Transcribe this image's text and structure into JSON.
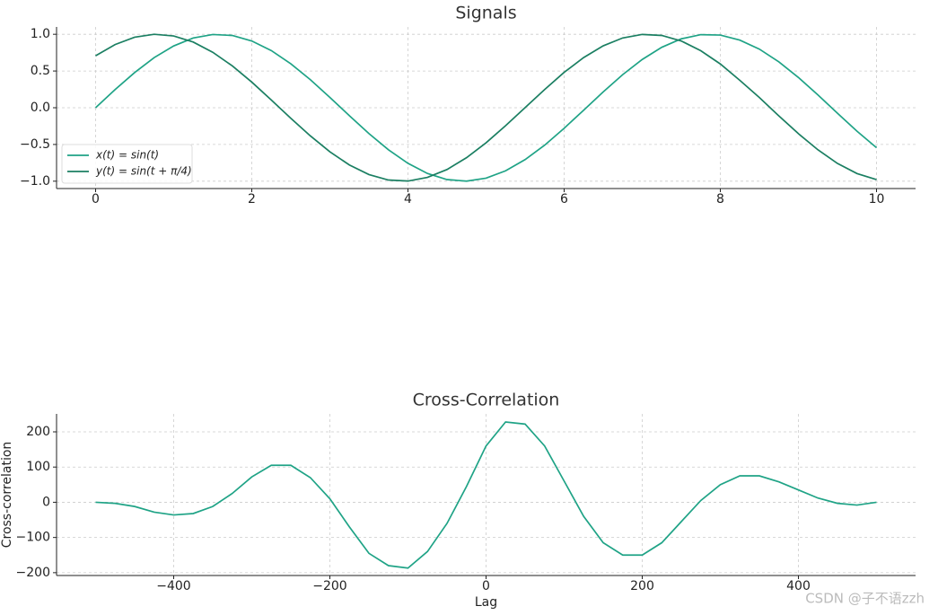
{
  "chart_data": [
    {
      "type": "line",
      "title": "Signals",
      "x": [
        0,
        0.25,
        0.5,
        0.75,
        1,
        1.25,
        1.5,
        1.75,
        2,
        2.25,
        2.5,
        2.75,
        3,
        3.25,
        3.5,
        3.75,
        4,
        4.25,
        4.5,
        4.75,
        5,
        5.25,
        5.5,
        5.75,
        6,
        6.25,
        6.5,
        6.75,
        7,
        7.25,
        7.5,
        7.75,
        8,
        8.25,
        8.5,
        8.75,
        9,
        9.25,
        9.5,
        9.75,
        10
      ],
      "series": [
        {
          "name": "x(t) = sin(t)",
          "color": "#1fa386",
          "values": [
            0,
            0.247,
            0.479,
            0.682,
            0.841,
            0.949,
            0.997,
            0.984,
            0.909,
            0.778,
            0.598,
            0.382,
            0.141,
            -0.108,
            -0.351,
            -0.572,
            -0.757,
            -0.895,
            -0.978,
            -0.999,
            -0.959,
            -0.859,
            -0.706,
            -0.51,
            -0.279,
            -0.033,
            0.215,
            0.451,
            0.657,
            0.823,
            0.938,
            0.995,
            0.989,
            0.92,
            0.798,
            0.624,
            0.412,
            0.174,
            -0.075,
            -0.319,
            -0.544
          ]
        },
        {
          "name": "y(t) = sin(t + π/4)",
          "color": "#1b7f62",
          "values": [
            0.707,
            0.86,
            0.96,
            1.0,
            0.977,
            0.894,
            0.755,
            0.57,
            0.349,
            0.106,
            -0.144,
            -0.383,
            -0.6,
            -0.779,
            -0.91,
            -0.984,
            -0.998,
            -0.948,
            -0.841,
            -0.68,
            -0.477,
            -0.245,
            0.002,
            0.248,
            0.482,
            0.683,
            0.843,
            0.95,
            0.998,
            0.984,
            0.909,
            0.776,
            0.596,
            0.373,
            0.139,
            -0.112,
            -0.353,
            -0.573,
            -0.758,
            -0.896,
            -0.978
          ]
        }
      ],
      "xlim": [
        -0.5,
        10.5
      ],
      "xticks": [
        0,
        2,
        4,
        6,
        8,
        10
      ],
      "ylim": [
        -1.1,
        1.1
      ],
      "yticks": [
        {
          "value": -1,
          "label": "−1.0"
        },
        {
          "value": -0.5,
          "label": "−0.5"
        },
        {
          "value": 0,
          "label": "0.0"
        },
        {
          "value": 0.5,
          "label": "0.5"
        },
        {
          "value": 1,
          "label": "1.0"
        }
      ],
      "grid": true,
      "legend": "lower left"
    },
    {
      "type": "line",
      "title": "Cross-Correlation",
      "xlabel": "Lag",
      "ylabel": "Cross-correlation",
      "color": "#1fa386",
      "x": [
        -500,
        -475,
        -450,
        -425,
        -400,
        -375,
        -350,
        -325,
        -300,
        -275,
        -250,
        -225,
        -200,
        -175,
        -150,
        -125,
        -100,
        -75,
        -50,
        -25,
        0,
        25,
        50,
        75,
        100,
        125,
        150,
        175,
        200,
        225,
        250,
        275,
        300,
        325,
        350,
        375,
        400,
        425,
        450,
        475,
        500
      ],
      "values": [
        0,
        -3,
        -12,
        -28,
        -36,
        -32,
        -12,
        25,
        72,
        105,
        105,
        70,
        10,
        -70,
        -145,
        -180,
        -187,
        -140,
        -60,
        45,
        160,
        228,
        222,
        160,
        60,
        -40,
        -115,
        -150,
        -150,
        -115,
        -55,
        5,
        50,
        75,
        75,
        58,
        35,
        12,
        -3,
        -8,
        0
      ],
      "xlim": [
        -550,
        550
      ],
      "xticks": [
        {
          "value": -400,
          "label": "−400"
        },
        {
          "value": -200,
          "label": "−200"
        },
        0,
        200,
        400
      ],
      "ylim": [
        -208,
        251
      ],
      "yticks": [
        {
          "value": -200,
          "label": "−200"
        },
        {
          "value": -100,
          "label": "−100"
        },
        0,
        100,
        200
      ],
      "grid": true
    }
  ],
  "watermark": "CSDN @子不语zzh"
}
